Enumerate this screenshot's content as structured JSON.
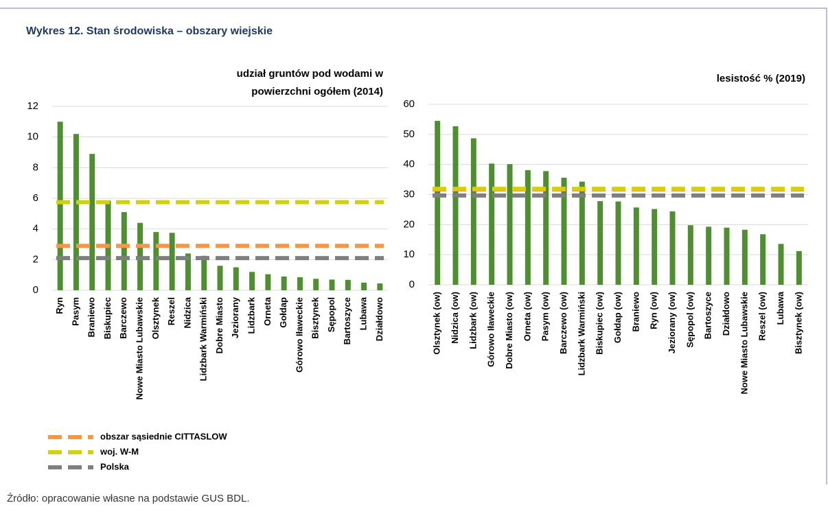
{
  "title": "Wykres 12. Stan środowiska – obszary wiejskie",
  "source": "Źródło: opracowanie własne na podstawie GUS BDL.",
  "legend": [
    {
      "name": "obszar sąsiednie CITTASLOW",
      "color": "#f79646"
    },
    {
      "name": "woj. W-M",
      "color": "#d2d20c"
    },
    {
      "name": "Polska",
      "color": "#7f7f7f"
    }
  ],
  "chart_data": [
    {
      "type": "bar",
      "title": "udział gruntów pod wodami w powierzchni ogółem (2014)",
      "categories": [
        "Ryn",
        "Pasym",
        "Braniewo",
        "Biskupiec",
        "Barczewo",
        "Nowe Miasto Lubawskie",
        "Olsztynek",
        "Reszel",
        "Nidzica",
        "Lidzbark Warmiński",
        "Dobre Miasto",
        "Jeziorany",
        "Lidzbark",
        "Orneta",
        "Gołdap",
        "Górowo Iławeckie",
        "Bisztynek",
        "Sępopol",
        "Bartoszyce",
        "Lubawa",
        "Działdowo"
      ],
      "values": [
        11.0,
        10.2,
        8.9,
        5.85,
        5.1,
        4.4,
        3.8,
        3.75,
        2.4,
        2.25,
        1.6,
        1.5,
        1.2,
        1.05,
        0.9,
        0.85,
        0.75,
        0.7,
        0.68,
        0.5,
        0.45
      ],
      "color": "#4f8f32",
      "reference_lines": [
        2.9,
        5.75,
        2.1
      ],
      "ylim": [
        0,
        12
      ],
      "yticks": [
        0,
        2,
        4,
        6,
        8,
        10,
        12
      ]
    },
    {
      "type": "bar",
      "title": "lesistość % (2019)",
      "categories": [
        "Olsztynek (ow)",
        "Nidzica (ow)",
        "Lidzbark (ow)",
        "Górowo Iławeckie",
        "Dobre Miasto (ow)",
        "Orneta (ow)",
        "Pasym (ow)",
        "Barczewo (ow)",
        "Lidzbark Warmiński",
        "Biskupiec (ow)",
        "Gołdap (ow)",
        "Braniewo",
        "Ryn (ow)",
        "Jeziorany (ow)",
        "Sępopol (ow)",
        "Bartoszyce",
        "Działdowo",
        "Nowe Miasto Lubawskie",
        "Reszel (ow)",
        "Lubawa",
        "Bisztynek (ow)"
      ],
      "values": [
        54.5,
        52.7,
        48.7,
        40.3,
        40.1,
        38.1,
        37.8,
        35.6,
        34.3,
        27.8,
        27.7,
        25.7,
        25.2,
        24.4,
        19.8,
        19.3,
        19.0,
        18.3,
        16.8,
        13.6,
        11.2
      ],
      "color": "#4f8f32",
      "reference_lines": [
        31.7,
        31.9,
        29.7
      ],
      "ylim": [
        0,
        60
      ],
      "yticks": [
        0,
        10,
        20,
        30,
        40,
        50,
        60
      ]
    }
  ]
}
